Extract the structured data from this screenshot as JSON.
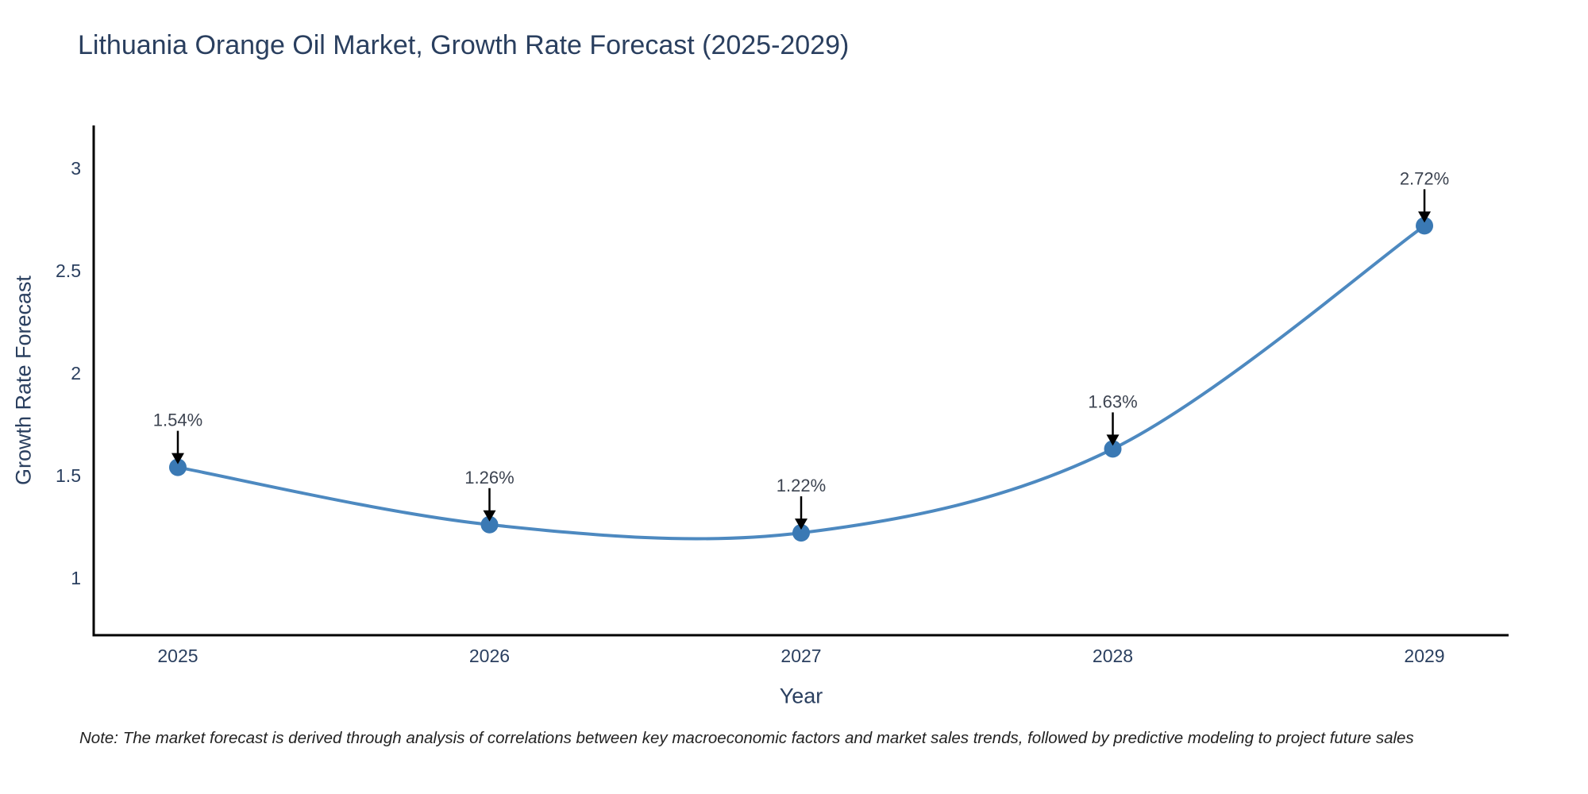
{
  "page": {
    "background": "#ffffff"
  },
  "note": {
    "text": "Note: The market forecast is derived through analysis of correlations between key macroeconomic factors and market sales trends, followed by predictive modeling to project future sales"
  },
  "chart_data": {
    "type": "line",
    "title": "Lithuania Orange Oil Market, Growth Rate Forecast (2025-2029)",
    "xlabel": "Year",
    "ylabel": "Growth Rate Forecast",
    "x": [
      2025,
      2026,
      2027,
      2028,
      2029
    ],
    "x_labels": [
      "2025",
      "2026",
      "2027",
      "2028",
      "2029"
    ],
    "series": [
      {
        "name": "Growth Rate Forecast",
        "values": [
          1.54,
          1.26,
          1.22,
          1.63,
          2.72
        ]
      }
    ],
    "point_labels": [
      "1.54%",
      "1.26%",
      "1.22%",
      "1.63%",
      "2.72%"
    ],
    "yticks": [
      1,
      1.5,
      2,
      2.5,
      3
    ],
    "ytick_labels": [
      "1",
      "1.5",
      "2",
      "2.5",
      "3"
    ],
    "xlim": [
      2024.73,
      2029.27
    ],
    "ylim": [
      0.72,
      3.21
    ],
    "grid": false,
    "legend": "none",
    "line_shape": "spline",
    "colors": {
      "line": "#4d89c0",
      "marker": "#3a79b4",
      "arrow": "#000000",
      "axis": "#000000",
      "tick_text": "#2a3f5f",
      "title_text": "#2a3f5f",
      "annotation_text": "#3d4451",
      "note_text": "#222222"
    }
  }
}
